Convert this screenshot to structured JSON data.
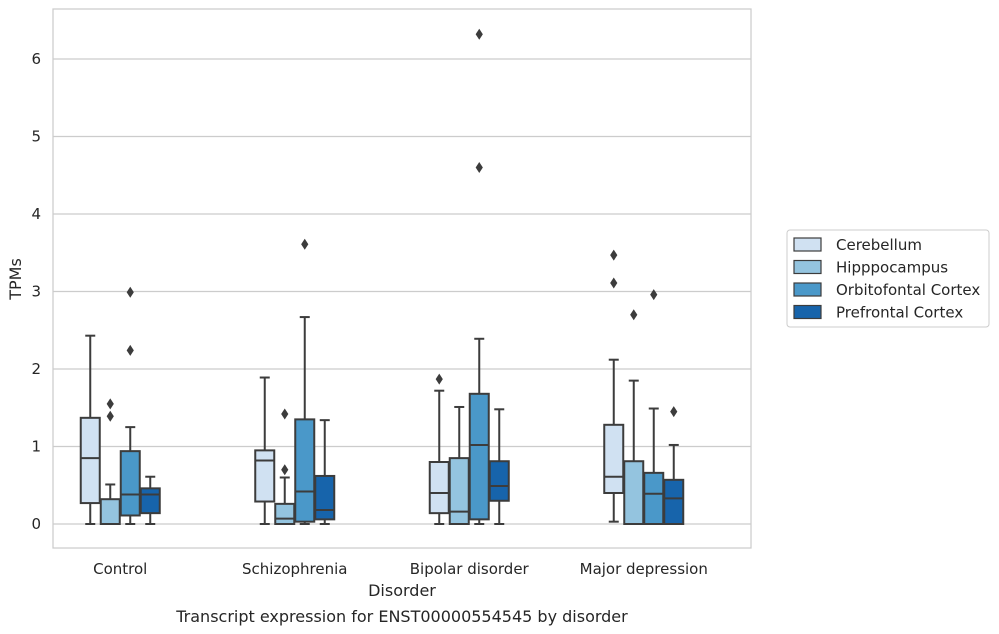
{
  "chart_data": {
    "type": "box",
    "title": "",
    "caption": "Transcript expression for ENST00000554545 by disorder",
    "xlabel": "Disorder",
    "ylabel": "TPMs",
    "categories": [
      "Control",
      "Schizophrenia",
      "Bipolar disorder",
      "Major depression"
    ],
    "ylim": [
      -0.3,
      6.65
    ],
    "yticks": [
      0,
      1,
      2,
      3,
      4,
      5,
      6
    ],
    "grid": "horizontal",
    "legend_position": "right",
    "series": [
      {
        "name": "Cerebellum",
        "color": "#d0e1f2",
        "boxes": [
          {
            "whislo": 0.0,
            "q1": 0.27,
            "med": 0.85,
            "q3": 1.37,
            "whishi": 2.43,
            "fliers": []
          },
          {
            "whislo": 0.0,
            "q1": 0.29,
            "med": 0.82,
            "q3": 0.95,
            "whishi": 1.89,
            "fliers": []
          },
          {
            "whislo": 0.0,
            "q1": 0.14,
            "med": 0.4,
            "q3": 0.8,
            "whishi": 1.72,
            "fliers": [
              1.87
            ]
          },
          {
            "whislo": 0.03,
            "q1": 0.4,
            "med": 0.61,
            "q3": 1.28,
            "whishi": 2.12,
            "fliers": [
              3.11,
              3.47
            ]
          }
        ]
      },
      {
        "name": "Hipppocampus",
        "color": "#94c4df",
        "boxes": [
          {
            "whislo": 0.0,
            "q1": 0.0,
            "med": 0.0,
            "q3": 0.32,
            "whishi": 0.51,
            "fliers": [
              1.39,
              1.55
            ]
          },
          {
            "whislo": 0.0,
            "q1": 0.0,
            "med": 0.07,
            "q3": 0.26,
            "whishi": 0.6,
            "fliers": [
              0.7,
              1.42
            ]
          },
          {
            "whislo": 0.0,
            "q1": 0.0,
            "med": 0.16,
            "q3": 0.85,
            "whishi": 1.51,
            "fliers": []
          },
          {
            "whislo": 0.0,
            "q1": 0.0,
            "med": 0.0,
            "q3": 0.81,
            "whishi": 1.85,
            "fliers": [
              2.7
            ]
          }
        ]
      },
      {
        "name": "Orbitofontal Cortex",
        "color": "#4a98c9",
        "boxes": [
          {
            "whislo": 0.0,
            "q1": 0.11,
            "med": 0.38,
            "q3": 0.94,
            "whishi": 1.25,
            "fliers": [
              2.24,
              2.99
            ]
          },
          {
            "whislo": 0.0,
            "q1": 0.03,
            "med": 0.42,
            "q3": 1.35,
            "whishi": 2.67,
            "fliers": [
              3.61
            ]
          },
          {
            "whislo": 0.0,
            "q1": 0.06,
            "med": 1.02,
            "q3": 1.68,
            "whishi": 2.39,
            "fliers": [
              4.6,
              6.32
            ]
          },
          {
            "whislo": 0.0,
            "q1": 0.0,
            "med": 0.39,
            "q3": 0.66,
            "whishi": 1.49,
            "fliers": [
              2.96
            ]
          }
        ]
      },
      {
        "name": "Prefrontal Cortex",
        "color": "#1764ab",
        "boxes": [
          {
            "whislo": 0.0,
            "q1": 0.14,
            "med": 0.38,
            "q3": 0.46,
            "whishi": 0.61,
            "fliers": []
          },
          {
            "whislo": 0.0,
            "q1": 0.06,
            "med": 0.18,
            "q3": 0.62,
            "whishi": 1.34,
            "fliers": []
          },
          {
            "whislo": 0.0,
            "q1": 0.3,
            "med": 0.49,
            "q3": 0.81,
            "whishi": 1.48,
            "fliers": []
          },
          {
            "whislo": 0.0,
            "q1": 0.0,
            "med": 0.33,
            "q3": 0.57,
            "whishi": 1.02,
            "fliers": [
              1.45
            ]
          }
        ]
      }
    ]
  }
}
